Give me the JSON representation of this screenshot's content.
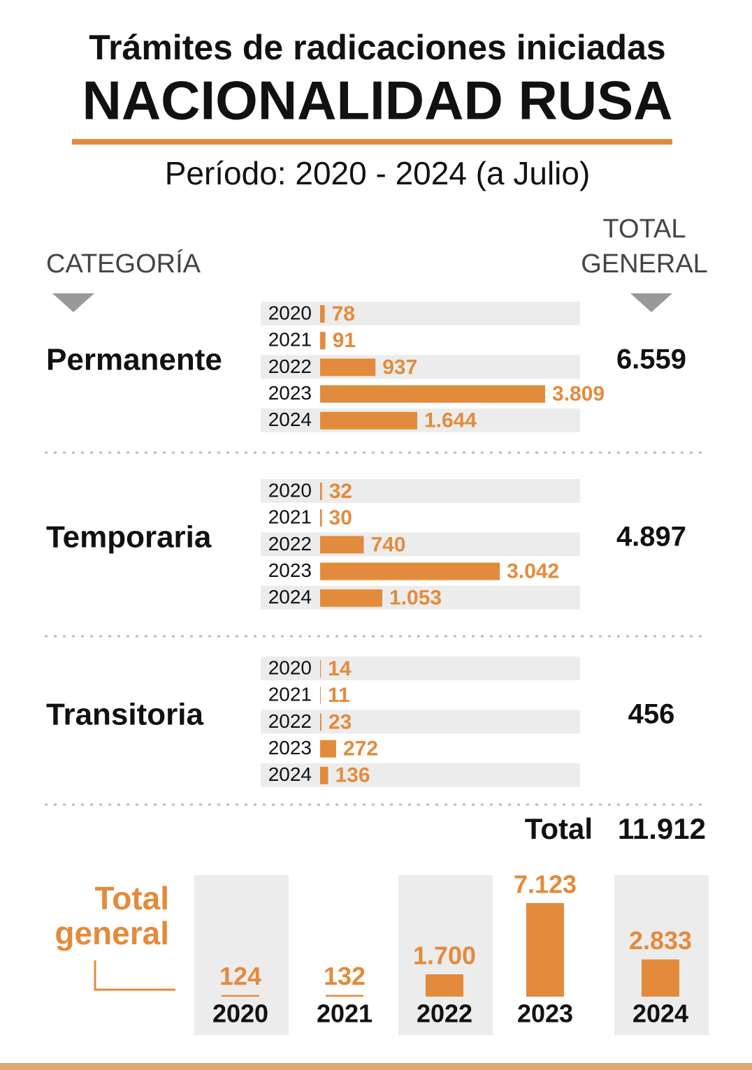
{
  "header": {
    "title": "Trámites de radicaciones iniciadas",
    "headline": "NACIONALIDAD RUSA",
    "subtitle": "Período: 2020 - 2024 (a Julio)",
    "category_label": "CATEGORÍA",
    "total_label": [
      "TOTAL",
      "GENERAL"
    ]
  },
  "chart_data": [
    {
      "type": "bar",
      "orientation": "horizontal",
      "title": "Permanente",
      "categories": [
        "2020",
        "2021",
        "2022",
        "2023",
        "2024"
      ],
      "values": [
        78,
        91,
        937,
        3809,
        1644
      ],
      "value_labels": [
        "78",
        "91",
        "937",
        "3.809",
        "1.644"
      ],
      "total": "6.559",
      "color": "#e38b3c",
      "xlim": [
        0,
        4400
      ]
    },
    {
      "type": "bar",
      "orientation": "horizontal",
      "title": "Temporaria",
      "categories": [
        "2020",
        "2021",
        "2022",
        "2023",
        "2024"
      ],
      "values": [
        32,
        30,
        740,
        3042,
        1053
      ],
      "value_labels": [
        "32",
        "30",
        "740",
        "3.042",
        "1.053"
      ],
      "total": "4.897",
      "color": "#e38b3c",
      "xlim": [
        0,
        4400
      ]
    },
    {
      "type": "bar",
      "orientation": "horizontal",
      "title": "Transitoria",
      "categories": [
        "2020",
        "2021",
        "2022",
        "2023",
        "2024"
      ],
      "values": [
        14,
        11,
        23,
        272,
        136
      ],
      "total": "456",
      "color": "#e38b3c",
      "xlim": [
        0,
        4400
      ]
    },
    {
      "type": "column",
      "title": [
        "Total",
        "general"
      ],
      "categories": [
        "2020",
        "2021",
        "2022",
        "2023",
        "2024"
      ],
      "values": [
        124,
        132,
        1700,
        7123,
        2833
      ],
      "value_labels": [
        "124",
        "132",
        "1.700",
        "7.123",
        "2.833"
      ],
      "color": "#e38b3c",
      "ylim": [
        0,
        7600
      ]
    }
  ],
  "grand_total": {
    "label": "Total",
    "value": "11.912"
  }
}
